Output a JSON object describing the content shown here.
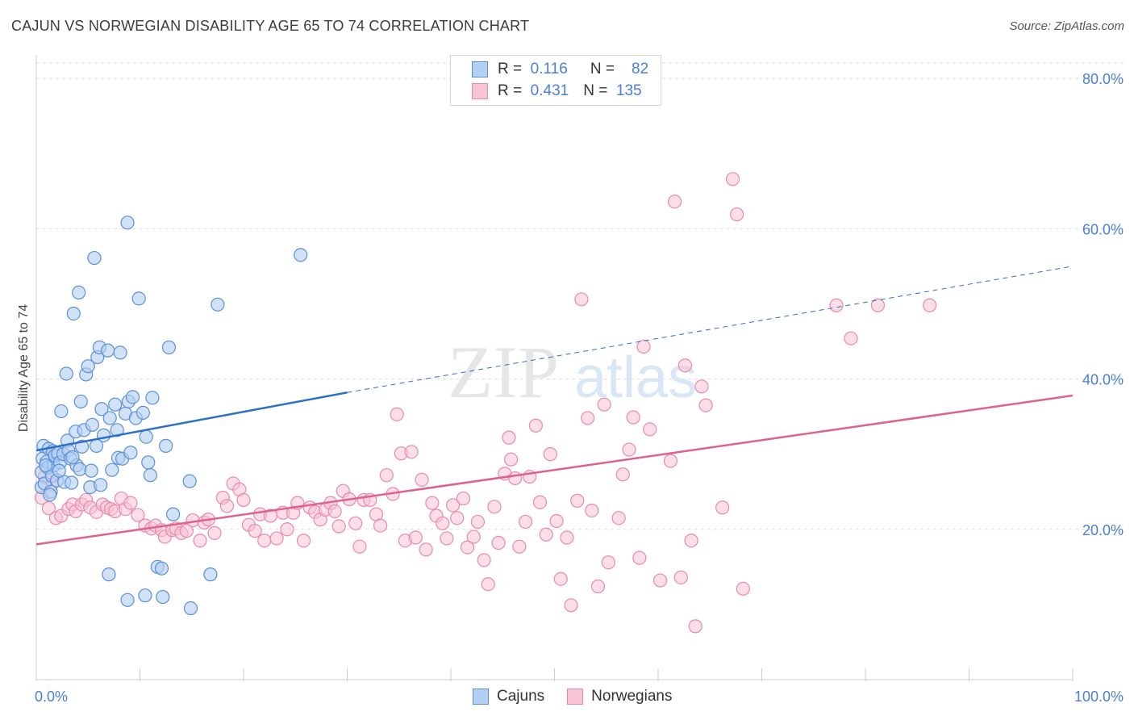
{
  "title": "CAJUN VS NORWEGIAN DISABILITY AGE 65 TO 74 CORRELATION CHART",
  "source": "Source: ZipAtlas.com",
  "watermark": {
    "zip": "ZIP",
    "atlas": "atlas"
  },
  "legend_top": [
    {
      "r_label": "R =",
      "r_value": "0.116",
      "n_label": "N =",
      "n_value": "82"
    },
    {
      "r_label": "R =",
      "r_value": "0.431",
      "n_label": "N =",
      "n_value": "135"
    }
  ],
  "legend_bottom": [
    "Cajuns",
    "Norwegians"
  ],
  "colors": {
    "cajun_fill": "#b3cff2",
    "cajun_stroke": "#5a8fd8",
    "cajun_line": "#2a6fc9",
    "norwegian_fill": "#f8c3d4",
    "norwegian_stroke": "#e98aaa",
    "norwegian_line": "#e0608e",
    "axis_label": "#4a7fd4",
    "grid": "#dddddd"
  },
  "chart_data": {
    "type": "scatter",
    "title": "CAJUN VS NORWEGIAN DISABILITY AGE 65 TO 74 CORRELATION CHART",
    "xlabel": "",
    "ylabel": "Disability Age 65 to 74",
    "xlim": [
      0,
      100
    ],
    "ylim": [
      0,
      80
    ],
    "x_tick_labels": [
      "0.0%",
      "100.0%"
    ],
    "y_tick_labels": [
      "20.0%",
      "40.0%",
      "60.0%",
      "80.0%"
    ],
    "y_ticks": [
      20,
      40,
      60,
      80
    ],
    "grid": true,
    "series": [
      {
        "name": "Cajuns",
        "r": 0.116,
        "n": 82,
        "trend": {
          "x0": 0,
          "y0": 30.5,
          "x1": 30,
          "y1": 38.2,
          "dashed_to_x": 100,
          "dashed_to_y": 55.0
        },
        "points": [
          [
            0.5,
            25.6
          ],
          [
            0.5,
            27.6
          ],
          [
            0.6,
            29.4
          ],
          [
            0.7,
            31.1
          ],
          [
            0.8,
            26.1
          ],
          [
            1.0,
            29.0
          ],
          [
            1.1,
            28.2
          ],
          [
            1.2,
            30.7
          ],
          [
            1.4,
            25.0
          ],
          [
            1.5,
            27.1
          ],
          [
            1.6,
            30.4
          ],
          [
            1.7,
            28.5
          ],
          [
            1.8,
            29.8
          ],
          [
            2.0,
            26.5
          ],
          [
            2.1,
            30.1
          ],
          [
            2.3,
            28.9
          ],
          [
            2.4,
            35.7
          ],
          [
            2.6,
            30.0
          ],
          [
            2.7,
            26.3
          ],
          [
            2.9,
            40.7
          ],
          [
            3.0,
            31.8
          ],
          [
            3.1,
            30.5
          ],
          [
            3.3,
            29.4
          ],
          [
            3.4,
            26.2
          ],
          [
            3.6,
            48.7
          ],
          [
            3.8,
            33.0
          ],
          [
            3.9,
            28.5
          ],
          [
            4.1,
            51.5
          ],
          [
            4.2,
            28.0
          ],
          [
            4.3,
            37.0
          ],
          [
            4.4,
            31.0
          ],
          [
            4.6,
            33.2
          ],
          [
            4.8,
            40.6
          ],
          [
            5.0,
            41.7
          ],
          [
            5.2,
            25.6
          ],
          [
            5.3,
            27.8
          ],
          [
            5.4,
            33.9
          ],
          [
            5.6,
            56.1
          ],
          [
            5.8,
            31.1
          ],
          [
            5.9,
            42.9
          ],
          [
            6.1,
            44.2
          ],
          [
            6.3,
            36.0
          ],
          [
            6.5,
            32.5
          ],
          [
            6.9,
            43.8
          ],
          [
            7.1,
            34.8
          ],
          [
            7.3,
            27.9
          ],
          [
            7.6,
            36.6
          ],
          [
            7.8,
            33.2
          ],
          [
            7.9,
            29.5
          ],
          [
            8.1,
            43.5
          ],
          [
            8.3,
            29.4
          ],
          [
            8.6,
            35.4
          ],
          [
            8.9,
            37.0
          ],
          [
            9.1,
            30.2
          ],
          [
            9.3,
            37.6
          ],
          [
            9.6,
            34.8
          ],
          [
            9.9,
            50.7
          ],
          [
            10.3,
            35.5
          ],
          [
            10.6,
            32.3
          ],
          [
            10.8,
            28.9
          ],
          [
            11.0,
            27.2
          ],
          [
            11.2,
            37.5
          ],
          [
            11.7,
            15.0
          ],
          [
            12.1,
            14.8
          ],
          [
            12.5,
            31.1
          ],
          [
            12.8,
            44.2
          ],
          [
            13.2,
            22.0
          ],
          [
            7.0,
            14.0
          ],
          [
            8.8,
            10.6
          ],
          [
            12.2,
            11.0
          ],
          [
            14.9,
            9.5
          ],
          [
            16.8,
            14.0
          ],
          [
            14.8,
            26.4
          ],
          [
            17.5,
            49.9
          ],
          [
            25.5,
            56.5
          ],
          [
            8.8,
            60.8
          ],
          [
            10.5,
            11.2
          ],
          [
            6.2,
            25.9
          ],
          [
            3.5,
            29.6
          ],
          [
            2.2,
            27.8
          ],
          [
            1.3,
            24.6
          ],
          [
            0.9,
            28.5
          ]
        ]
      },
      {
        "name": "Norwegians",
        "r": 0.431,
        "n": 135,
        "trend": {
          "x0": 0,
          "y0": 18.0,
          "x1": 100,
          "y1": 37.8
        },
        "points": [
          [
            0.5,
            24.2
          ],
          [
            0.8,
            27.0
          ],
          [
            1.2,
            22.8
          ],
          [
            1.5,
            26.0
          ],
          [
            1.9,
            21.5
          ],
          [
            2.4,
            21.8
          ],
          [
            3.1,
            22.7
          ],
          [
            3.5,
            23.3
          ],
          [
            3.8,
            22.4
          ],
          [
            4.4,
            23.3
          ],
          [
            4.8,
            23.9
          ],
          [
            5.2,
            22.9
          ],
          [
            5.8,
            22.3
          ],
          [
            6.4,
            23.3
          ],
          [
            6.8,
            22.9
          ],
          [
            7.2,
            22.7
          ],
          [
            7.6,
            22.4
          ],
          [
            8.2,
            24.1
          ],
          [
            8.6,
            22.7
          ],
          [
            9.1,
            23.5
          ],
          [
            9.8,
            21.9
          ],
          [
            10.5,
            20.5
          ],
          [
            11.1,
            20.1
          ],
          [
            11.5,
            20.5
          ],
          [
            12.1,
            19.9
          ],
          [
            12.4,
            19.0
          ],
          [
            13.1,
            19.9
          ],
          [
            13.5,
            20.1
          ],
          [
            14.0,
            19.5
          ],
          [
            14.5,
            19.8
          ],
          [
            15.1,
            21.2
          ],
          [
            15.8,
            18.5
          ],
          [
            16.2,
            20.9
          ],
          [
            16.6,
            21.3
          ],
          [
            17.2,
            19.5
          ],
          [
            18.0,
            24.2
          ],
          [
            18.4,
            23.1
          ],
          [
            19.0,
            26.1
          ],
          [
            19.6,
            25.3
          ],
          [
            20.0,
            23.9
          ],
          [
            20.5,
            20.6
          ],
          [
            21.1,
            19.8
          ],
          [
            21.6,
            22.0
          ],
          [
            22.0,
            18.5
          ],
          [
            22.6,
            21.8
          ],
          [
            23.2,
            18.8
          ],
          [
            23.8,
            22.2
          ],
          [
            24.2,
            20.0
          ],
          [
            24.8,
            22.2
          ],
          [
            25.2,
            23.5
          ],
          [
            25.8,
            18.5
          ],
          [
            26.4,
            22.9
          ],
          [
            26.9,
            22.3
          ],
          [
            27.4,
            21.3
          ],
          [
            27.9,
            22.6
          ],
          [
            28.4,
            23.5
          ],
          [
            28.8,
            22.4
          ],
          [
            29.2,
            20.4
          ],
          [
            29.6,
            25.1
          ],
          [
            30.2,
            24.0
          ],
          [
            30.8,
            20.8
          ],
          [
            31.2,
            17.7
          ],
          [
            31.6,
            23.9
          ],
          [
            32.2,
            23.9
          ],
          [
            32.8,
            22.0
          ],
          [
            33.2,
            20.5
          ],
          [
            33.8,
            27.2
          ],
          [
            34.4,
            24.7
          ],
          [
            34.8,
            35.3
          ],
          [
            35.2,
            30.1
          ],
          [
            35.6,
            18.5
          ],
          [
            36.2,
            30.3
          ],
          [
            36.6,
            18.9
          ],
          [
            37.2,
            26.6
          ],
          [
            37.6,
            17.3
          ],
          [
            38.2,
            23.5
          ],
          [
            38.6,
            21.8
          ],
          [
            39.2,
            20.8
          ],
          [
            39.6,
            18.8
          ],
          [
            40.2,
            23.2
          ],
          [
            40.6,
            21.5
          ],
          [
            41.2,
            24.1
          ],
          [
            41.6,
            17.6
          ],
          [
            42.2,
            19.0
          ],
          [
            42.6,
            21.0
          ],
          [
            43.2,
            15.9
          ],
          [
            43.6,
            12.7
          ],
          [
            44.2,
            23.0
          ],
          [
            44.6,
            18.2
          ],
          [
            45.2,
            27.4
          ],
          [
            45.6,
            32.2
          ],
          [
            46.2,
            26.8
          ],
          [
            46.6,
            17.7
          ],
          [
            47.2,
            21.0
          ],
          [
            47.6,
            27.0
          ],
          [
            48.2,
            33.8
          ],
          [
            48.6,
            23.6
          ],
          [
            49.2,
            19.3
          ],
          [
            49.6,
            30.0
          ],
          [
            50.2,
            21.1
          ],
          [
            50.6,
            13.4
          ],
          [
            51.2,
            18.9
          ],
          [
            51.6,
            9.9
          ],
          [
            52.2,
            23.8
          ],
          [
            52.6,
            50.6
          ],
          [
            53.2,
            34.8
          ],
          [
            53.6,
            22.5
          ],
          [
            54.2,
            12.4
          ],
          [
            55.2,
            15.6
          ],
          [
            56.2,
            21.5
          ],
          [
            56.6,
            27.3
          ],
          [
            57.2,
            30.6
          ],
          [
            57.6,
            34.9
          ],
          [
            58.2,
            16.2
          ],
          [
            58.6,
            44.3
          ],
          [
            59.2,
            33.3
          ],
          [
            60.2,
            13.2
          ],
          [
            61.2,
            29.1
          ],
          [
            61.6,
            63.6
          ],
          [
            62.2,
            13.6
          ],
          [
            62.6,
            41.8
          ],
          [
            63.2,
            18.5
          ],
          [
            63.6,
            7.1
          ],
          [
            64.2,
            39.0
          ],
          [
            64.6,
            36.5
          ],
          [
            66.2,
            22.9
          ],
          [
            67.2,
            66.6
          ],
          [
            67.6,
            61.9
          ],
          [
            68.2,
            12.1
          ],
          [
            77.2,
            49.8
          ],
          [
            78.6,
            45.4
          ],
          [
            81.2,
            49.8
          ],
          [
            86.2,
            49.8
          ],
          [
            54.8,
            36.6
          ],
          [
            45.8,
            29.3
          ]
        ]
      }
    ]
  }
}
